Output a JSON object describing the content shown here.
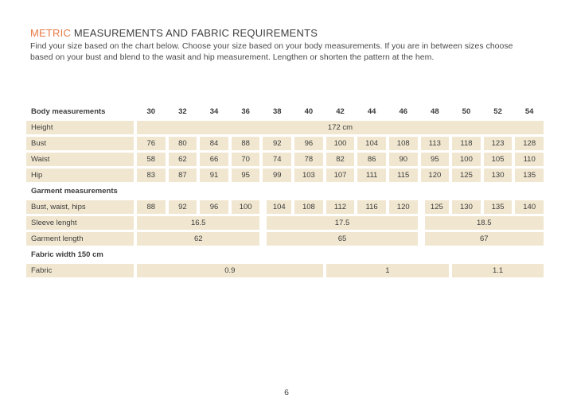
{
  "colors": {
    "accent": "#e67a45",
    "cell_bg": "#f1e7d0",
    "text": "#3c3c3c"
  },
  "page": {
    "title_highlight": "METRIC",
    "title_rest": " MEASUREMENTS AND FABRIC REQUIREMENTS",
    "intro_line1": "Find your size based on the chart below. Choose your size based on your body measurements. If you are in between sizes choose",
    "intro_line2": "based on your bust and blend to the wasit and hip measurement. Lengthen or shorten the pattern at the hem.",
    "page_number": "6"
  },
  "table": {
    "header": {
      "label": "Body measurements",
      "sizes": [
        "30",
        "32",
        "34",
        "36",
        "38",
        "40",
        "42",
        "44",
        "46",
        "48",
        "50",
        "52",
        "54"
      ]
    },
    "height_row": {
      "label": "Height",
      "value": "172 cm"
    },
    "body_rows": [
      {
        "label": "Bust",
        "values": [
          "76",
          "80",
          "84",
          "88",
          "92",
          "96",
          "100",
          "104",
          "108",
          "113",
          "118",
          "123",
          "128"
        ]
      },
      {
        "label": "Waist",
        "values": [
          "58",
          "62",
          "66",
          "70",
          "74",
          "78",
          "82",
          "86",
          "90",
          "95",
          "100",
          "105",
          "110"
        ]
      },
      {
        "label": "Hip",
        "values": [
          "83",
          "87",
          "91",
          "95",
          "99",
          "103",
          "107",
          "111",
          "115",
          "120",
          "125",
          "130",
          "135"
        ]
      }
    ],
    "garment_section_title": "Garment measurements",
    "garment_row": {
      "label": "Bust, waist, hips",
      "values": [
        "88",
        "92",
        "96",
        "100",
        "104",
        "108",
        "112",
        "116",
        "120",
        "125",
        "130",
        "135",
        "140"
      ]
    },
    "sleeve_row": {
      "label": "Sleeve lenght",
      "cells": [
        "16.5",
        "17.5",
        "18.5"
      ]
    },
    "length_row": {
      "label": "Garment length",
      "cells": [
        "62",
        "65",
        "67"
      ]
    },
    "fabric_section_title": "Fabric width 150 cm",
    "fabric_row": {
      "label": "Fabric",
      "cells": [
        "0.9",
        "1",
        "1.1"
      ]
    }
  }
}
